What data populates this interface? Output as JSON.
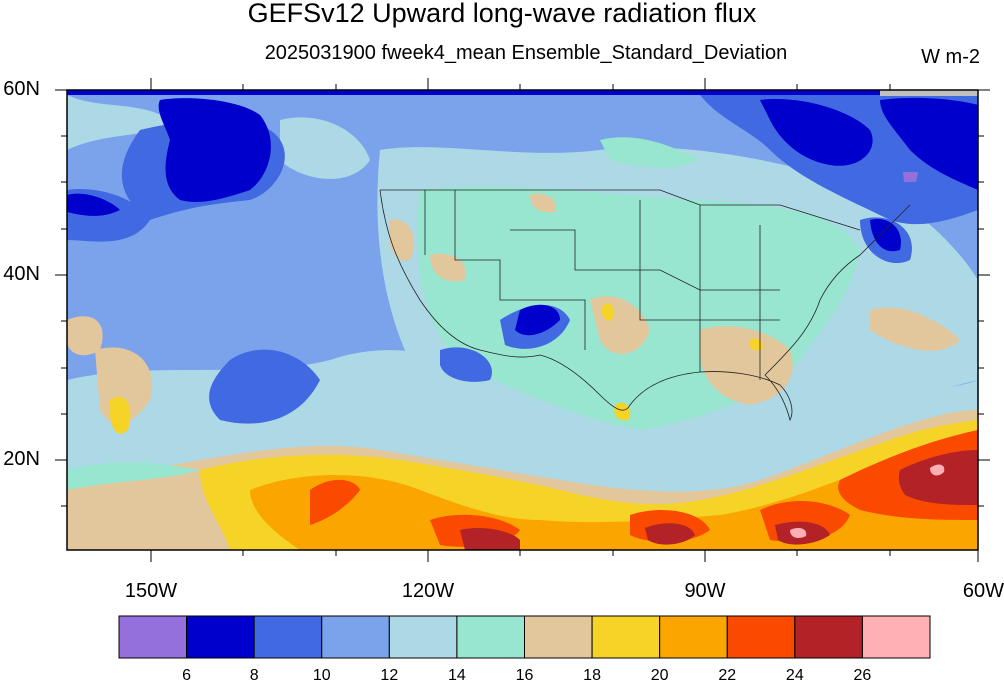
{
  "title": "GEFSv12 Upward long-wave radiation flux",
  "subtitle": "2025031900 fweek4_mean Ensemble_Standard_Deviation",
  "units": "W m-2",
  "map": {
    "region": "North Pacific / Contiguous United States",
    "lat_range": [
      10,
      60
    ],
    "lon_range": [
      -159,
      -60
    ],
    "lat_labels": [
      {
        "value": 60,
        "label": "60N"
      },
      {
        "value": 40,
        "label": "40N"
      },
      {
        "value": 20,
        "label": "20N"
      }
    ],
    "lon_labels": [
      {
        "value": -150,
        "label": "150W"
      },
      {
        "value": -120,
        "label": "120W"
      },
      {
        "value": -90,
        "label": "90W"
      },
      {
        "value": -60,
        "label": "60W"
      }
    ]
  },
  "colorbar": {
    "levels": [
      "6",
      "8",
      "10",
      "12",
      "14",
      "16",
      "18",
      "20",
      "22",
      "24",
      "26"
    ],
    "colors": [
      "#9370db",
      "#0000cd",
      "#4169e1",
      "#7ba3eb",
      "#add8e6",
      "#98e6cf",
      "#e2c79c",
      "#f5d327",
      "#fba600",
      "#f94a00",
      "#b22226",
      "#ffb0b5"
    ]
  },
  "chart_data": {
    "type": "heatmap",
    "title": "GEFSv12 Upward long-wave radiation flux",
    "subtitle": "2025031900 fweek4_mean Ensemble_Standard_Deviation",
    "units": "W m-2",
    "x_range": [
      -159,
      -60
    ],
    "y_range": [
      10,
      60
    ],
    "contour_levels": [
      6,
      8,
      10,
      12,
      14,
      16,
      18,
      20,
      22,
      24,
      26
    ]
  }
}
